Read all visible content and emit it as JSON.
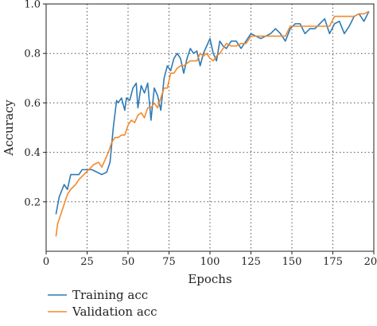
{
  "chart_data": {
    "type": "line",
    "title": "",
    "xlabel": "Epochs",
    "ylabel": "Accuracy",
    "xlim": [
      0,
      200
    ],
    "ylim": [
      0,
      1.0
    ],
    "xticks": [
      0,
      25,
      50,
      75,
      100,
      125,
      150,
      175,
      200
    ],
    "yticks": [
      0.2,
      0.4,
      0.6,
      0.8,
      1.0
    ],
    "xtick_labels": [
      "0",
      "25",
      "50",
      "75",
      "100",
      "125",
      "150",
      "175",
      "200"
    ],
    "ytick_labels": [
      "0.2",
      "0.4",
      "0.6",
      "0.8",
      "1.0"
    ],
    "grid": true,
    "legend_position": "below plot, left",
    "series": [
      {
        "name": "Training acc",
        "color": "#2f7bb6",
        "x": [
          6,
          8,
          11,
          13,
          15,
          17,
          20,
          22,
          25,
          28,
          31,
          34,
          37,
          39,
          41,
          43,
          44,
          46,
          48,
          49,
          51,
          53,
          55,
          56,
          58,
          60,
          62,
          64,
          66,
          68,
          70,
          72,
          74,
          76,
          78,
          80,
          82,
          84,
          86,
          88,
          90,
          92,
          94,
          96,
          98,
          100,
          102,
          104,
          106,
          108,
          110,
          113,
          116,
          119,
          122,
          125,
          128,
          131,
          134,
          137,
          140,
          143,
          146,
          149,
          152,
          155,
          158,
          161,
          164,
          167,
          170,
          173,
          176,
          179,
          182,
          185,
          188,
          191,
          194,
          197
        ],
        "y": [
          0.15,
          0.22,
          0.27,
          0.25,
          0.31,
          0.31,
          0.31,
          0.33,
          0.33,
          0.33,
          0.32,
          0.31,
          0.32,
          0.36,
          0.5,
          0.61,
          0.6,
          0.62,
          0.57,
          0.62,
          0.61,
          0.66,
          0.68,
          0.58,
          0.67,
          0.64,
          0.68,
          0.53,
          0.66,
          0.63,
          0.57,
          0.7,
          0.75,
          0.73,
          0.78,
          0.8,
          0.78,
          0.72,
          0.78,
          0.82,
          0.8,
          0.81,
          0.75,
          0.8,
          0.83,
          0.86,
          0.8,
          0.77,
          0.85,
          0.83,
          0.82,
          0.85,
          0.85,
          0.82,
          0.85,
          0.88,
          0.87,
          0.86,
          0.87,
          0.88,
          0.9,
          0.88,
          0.85,
          0.9,
          0.92,
          0.92,
          0.88,
          0.9,
          0.9,
          0.92,
          0.94,
          0.88,
          0.92,
          0.93,
          0.88,
          0.91,
          0.95,
          0.96,
          0.93,
          0.97
        ]
      },
      {
        "name": "Validation acc",
        "color": "#f28a2c",
        "x": [
          6,
          7,
          10,
          13,
          15,
          18,
          20,
          23,
          26,
          29,
          32,
          34,
          36,
          38,
          40,
          42,
          44,
          46,
          48,
          50,
          52,
          54,
          56,
          58,
          60,
          62,
          64,
          66,
          68,
          70,
          72,
          74,
          76,
          78,
          80,
          82,
          84,
          86,
          88,
          90,
          92,
          94,
          96,
          98,
          100,
          102,
          104,
          106,
          108,
          110,
          113,
          116,
          119,
          122,
          125,
          128,
          131,
          134,
          137,
          140,
          143,
          146,
          149,
          152,
          155,
          158,
          161,
          164,
          167,
          170,
          173,
          176,
          179,
          182,
          185,
          188,
          191,
          194,
          197
        ],
        "y": [
          0.06,
          0.11,
          0.17,
          0.23,
          0.25,
          0.27,
          0.29,
          0.31,
          0.33,
          0.35,
          0.36,
          0.34,
          0.37,
          0.4,
          0.44,
          0.46,
          0.46,
          0.47,
          0.47,
          0.51,
          0.53,
          0.52,
          0.55,
          0.56,
          0.54,
          0.58,
          0.58,
          0.6,
          0.58,
          0.62,
          0.66,
          0.66,
          0.72,
          0.72,
          0.74,
          0.75,
          0.75,
          0.76,
          0.77,
          0.77,
          0.77,
          0.8,
          0.79,
          0.8,
          0.78,
          0.77,
          0.79,
          0.8,
          0.82,
          0.84,
          0.83,
          0.83,
          0.84,
          0.84,
          0.87,
          0.87,
          0.87,
          0.87,
          0.87,
          0.87,
          0.87,
          0.87,
          0.91,
          0.91,
          0.91,
          0.91,
          0.91,
          0.91,
          0.91,
          0.91,
          0.91,
          0.95,
          0.95,
          0.95,
          0.95,
          0.95,
          0.96,
          0.96,
          0.97
        ]
      }
    ]
  }
}
